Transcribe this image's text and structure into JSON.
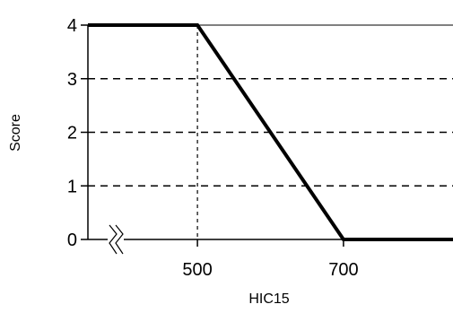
{
  "chart_data": {
    "type": "line",
    "title": "",
    "xlabel": "HIC15",
    "ylabel": "Score",
    "x_ticks": [
      500,
      700
    ],
    "y_ticks": [
      0,
      1,
      2,
      3,
      4
    ],
    "x_axis_break": true,
    "grid": "horizontal dashed at y = 1, 2, 3; vertical dashed at x = 500",
    "series": [
      {
        "x": [
          350,
          500,
          700,
          850
        ],
        "y": [
          4,
          4,
          0,
          0
        ]
      }
    ],
    "colors": {
      "line": "#000000",
      "grid": "#000000"
    }
  }
}
